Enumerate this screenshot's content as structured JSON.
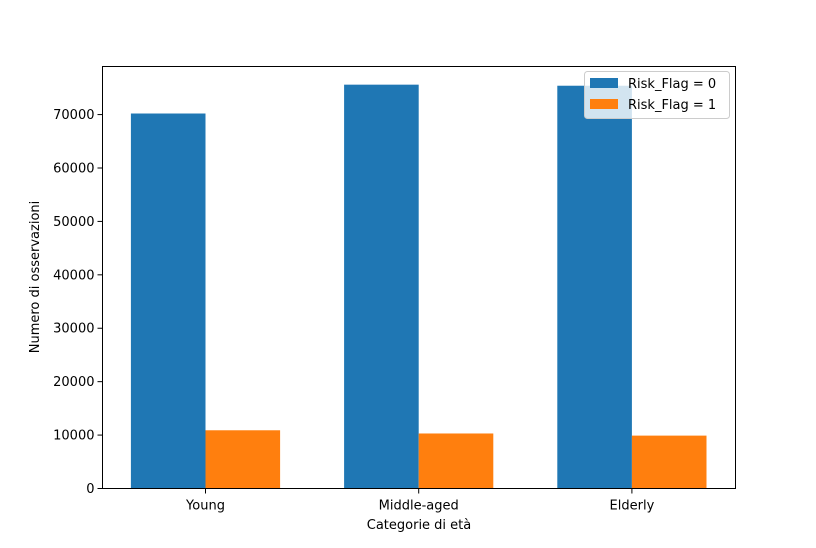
{
  "chart_data": {
    "type": "bar",
    "title": "",
    "xlabel": "Categorie di età",
    "ylabel": "Numero di osservazioni",
    "categories": [
      "Young",
      "Middle-aged",
      "Elderly"
    ],
    "series": [
      {
        "name": "Risk_Flag = 0",
        "values": [
          70200,
          75600,
          75400
        ],
        "color": "#1f77b4"
      },
      {
        "name": "Risk_Flag = 1",
        "values": [
          10900,
          10300,
          9900
        ],
        "color": "#ff7f0e"
      }
    ],
    "ylim": [
      0,
      79000
    ],
    "yticks": [
      0,
      10000,
      20000,
      30000,
      40000,
      50000,
      60000,
      70000
    ],
    "grid": false,
    "legend_position": "top-right"
  }
}
